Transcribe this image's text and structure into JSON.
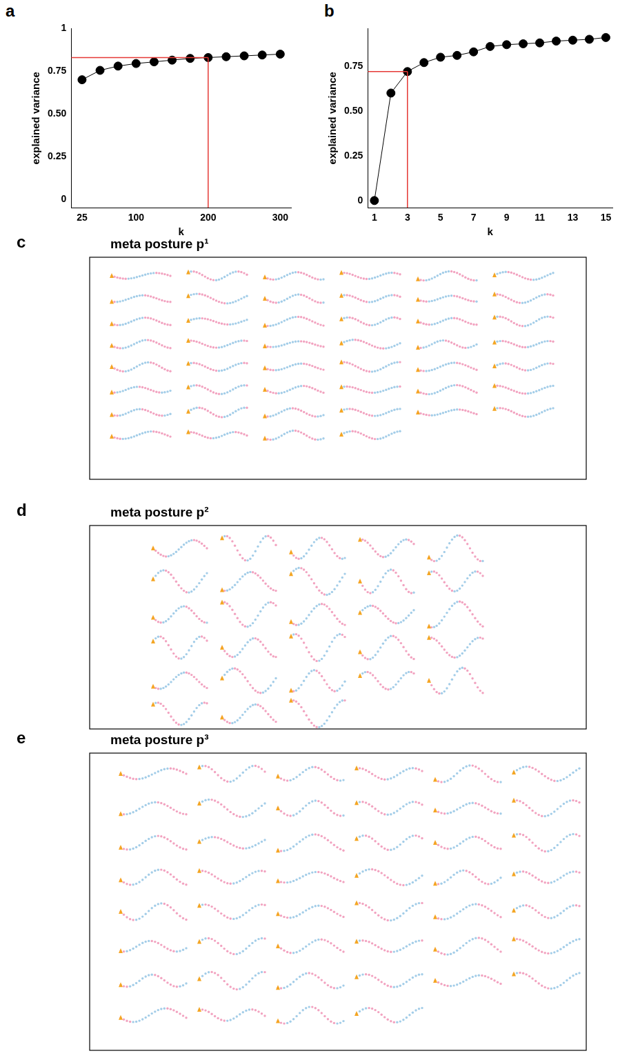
{
  "chart_data": [
    {
      "panel": "a",
      "type": "line",
      "x_label": "k",
      "y_label": "explained variance",
      "x": [
        25,
        50,
        75,
        100,
        125,
        150,
        175,
        200,
        225,
        250,
        275,
        300
      ],
      "values": [
        0.7,
        0.755,
        0.78,
        0.795,
        0.805,
        0.815,
        0.825,
        0.83,
        0.835,
        0.84,
        0.845,
        0.85
      ],
      "color": "#000000",
      "marker": "circle",
      "grid": false,
      "xlim": [
        10,
        315
      ],
      "xticks": [
        25,
        100,
        200,
        300
      ],
      "ylim": [
        -0.05,
        1
      ],
      "yticks": [
        0,
        0.25,
        {
          "value": 0.5,
          "label": "0.50"
        },
        0.75,
        1
      ],
      "marker_line": {
        "x": 200,
        "y": 0.83,
        "color": "#e53935"
      }
    },
    {
      "panel": "b",
      "type": "line",
      "x_label": "k",
      "y_label": "explained variance",
      "x": [
        1,
        2,
        3,
        4,
        5,
        6,
        7,
        8,
        9,
        10,
        11,
        12,
        13,
        14,
        15
      ],
      "values": [
        0,
        0.6,
        0.72,
        0.77,
        0.8,
        0.81,
        0.83,
        0.86,
        0.87,
        0.875,
        0.88,
        0.89,
        0.895,
        0.9,
        0.91
      ],
      "color": "#000000",
      "marker": "circle",
      "grid": false,
      "xlim": [
        0.6,
        15.4
      ],
      "xticks": [
        1,
        3,
        5,
        7,
        9,
        11,
        13,
        15
      ],
      "ylim": [
        -0.04,
        0.96
      ],
      "yticks": [
        0,
        0.25,
        {
          "value": 0.5,
          "label": "0.50"
        },
        0.75
      ],
      "marker_line": {
        "x": 3,
        "y": 0.72,
        "color": "#e53935"
      }
    }
  ],
  "panels": [
    {
      "letter": "c",
      "title": "meta posture p¹"
    },
    {
      "letter": "d",
      "title": "meta posture p²"
    },
    {
      "letter": "e",
      "title": "meta posture p³"
    }
  ]
}
